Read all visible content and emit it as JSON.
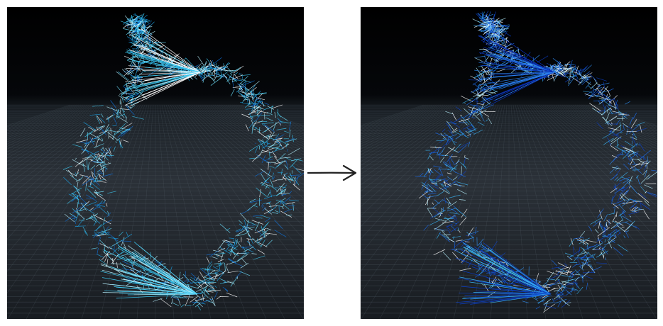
{
  "panels": [
    {
      "id": "before",
      "colors": [
        "#ffffff",
        "#b8f2ff",
        "#6fe3ff",
        "#3cc8f0",
        "#1aa3e8",
        "#0d6fd8"
      ],
      "floor_color": "#2b3138",
      "sky_color": "#000000"
    },
    {
      "id": "after",
      "colors": [
        "#1a6cf0",
        "#2f8ff5",
        "#0a3fc9",
        "#3ab4f2",
        "#b8f2ff",
        "#ffffff"
      ],
      "floor_color": "#2b3138",
      "sky_color": "#000000"
    }
  ],
  "arrow": {
    "color": "#222222",
    "icon": "right-arrow-icon"
  }
}
